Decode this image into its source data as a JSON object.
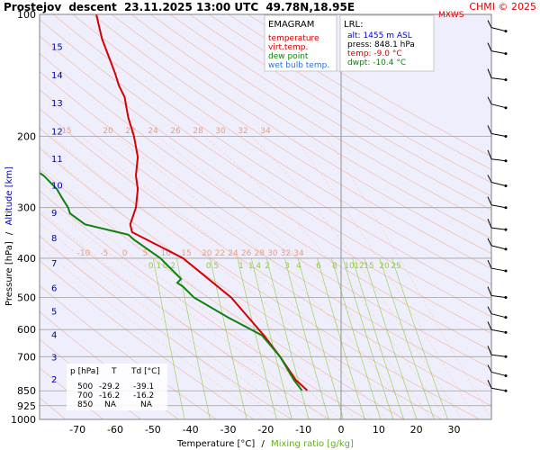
{
  "header": {
    "station": "Prostejov",
    "mode": "descent",
    "datetime": "23.11.2025 13:00 UTC",
    "coords": "49.78N,18.95E",
    "credit": "CHMI © 2025",
    "wind_label": "MXWS"
  },
  "colors": {
    "background": "#eeeefc",
    "temperature": "#d40000",
    "virt_temp": "#ff6060",
    "dew_point": "#108010",
    "wet_bulb": "#3070d0",
    "isotherm": "#c0c0c0",
    "dry_adiabat": "#f4b4a0",
    "moist_adiabat": "#f8d0b8",
    "mixing_ratio": "#90d040",
    "isobar": "#a0a0a0",
    "altitude_label": "#0000aa",
    "credit": "#e00000"
  },
  "legend": {
    "title": "EMAGRAM",
    "items": [
      {
        "label": "temperature",
        "color": "#d40000"
      },
      {
        "label": "virt.temp.",
        "color": "#d40000"
      },
      {
        "label": "dew point",
        "color": "#108010"
      },
      {
        "label": "wet bulb temp.",
        "color": "#3070d0"
      }
    ]
  },
  "lrl": {
    "title": "LRL:",
    "alt": "alt: 1455 m ASL",
    "press": "press: 848.1 hPa",
    "temp": "temp: -9.0 °C",
    "dwpt": "dwpt: -10.4 °C"
  },
  "table": {
    "headers": [
      "p [hPa]",
      "T",
      "Td [°C]"
    ],
    "rows": [
      [
        "500",
        "-29.2",
        "-39.1"
      ],
      [
        "700",
        "-16.2",
        "-16.2"
      ],
      [
        "850",
        "NA",
        "NA"
      ]
    ]
  },
  "axes": {
    "xlabel_temp": "Temperature [°C]",
    "xlabel_sep": "/",
    "xlabel_mix": "Mixing ratio [g/kg]",
    "ylabel_pressure": "Pressure [hPa]",
    "ylabel_sep": "/",
    "ylabel_alt": "Altitude [km]"
  },
  "chart_data": {
    "type": "line",
    "x_axis": {
      "label": "Temperature [°C]",
      "range": [
        -80,
        40
      ],
      "ticks": [
        -70,
        -60,
        -50,
        -40,
        -30,
        -20,
        -10,
        0,
        10,
        20,
        30
      ]
    },
    "y_axis": {
      "label": "Pressure [hPa]",
      "scale": "log",
      "range": [
        1000,
        100
      ],
      "ticks": [
        100,
        200,
        300,
        400,
        500,
        600,
        700,
        850,
        925,
        1000
      ]
    },
    "altitude_ticks_km": [
      2,
      3,
      4,
      5,
      6,
      7,
      8,
      9,
      10,
      11,
      12,
      13,
      14,
      15
    ],
    "isotherm_labels": [
      "15",
      "20",
      "22",
      "24",
      "26",
      "28",
      "30",
      "32",
      "34"
    ],
    "adiabat_labels": [
      "-10",
      "-5",
      "0",
      "5",
      "10",
      "15",
      "20",
      "22",
      "24",
      "26",
      "28",
      "30",
      "32",
      "34"
    ],
    "mixing_ratio_labels": [
      "0.1",
      "0.2",
      "0.5",
      "1",
      "1.4",
      "2",
      "3",
      "4",
      "6",
      "8",
      "10",
      "12",
      "15",
      "20",
      "25"
    ],
    "series": [
      {
        "name": "temperature",
        "points": [
          [
            -9.0,
            848
          ],
          [
            -12.0,
            800
          ],
          [
            -16.2,
            700
          ],
          [
            -20.5,
            620
          ],
          [
            -29.2,
            500
          ],
          [
            -42.0,
            400
          ],
          [
            -55.5,
            345
          ],
          [
            -56.0,
            330
          ],
          [
            -54.5,
            300
          ],
          [
            -54.0,
            270
          ],
          [
            -54.5,
            250
          ],
          [
            -54.0,
            225
          ],
          [
            -55.0,
            200
          ],
          [
            -56.5,
            180
          ],
          [
            -57.0,
            170
          ],
          [
            -57.5,
            160
          ],
          [
            -59.0,
            150
          ],
          [
            -60.0,
            140
          ],
          [
            -62.0,
            125
          ],
          [
            -63.5,
            115
          ],
          [
            -64.5,
            105
          ],
          [
            -65.0,
            100
          ]
        ]
      },
      {
        "name": "dew point",
        "points": [
          [
            -10.4,
            848
          ],
          [
            -12.5,
            800
          ],
          [
            -16.2,
            700
          ],
          [
            -21.0,
            620
          ],
          [
            -30.0,
            560
          ],
          [
            -39.1,
            500
          ],
          [
            -42.0,
            470
          ],
          [
            -43.5,
            460
          ],
          [
            -42.5,
            450
          ],
          [
            -48.0,
            400
          ],
          [
            -55.0,
            360
          ],
          [
            -56.5,
            350
          ],
          [
            -68.0,
            330
          ],
          [
            -72.0,
            310
          ],
          [
            -72.5,
            300
          ],
          [
            -74.0,
            285
          ],
          [
            -75.5,
            270
          ],
          [
            -79.0,
            250
          ],
          [
            -82.0,
            240
          ]
        ]
      }
    ],
    "wind_profile_note": "wind barbs at right edge"
  }
}
